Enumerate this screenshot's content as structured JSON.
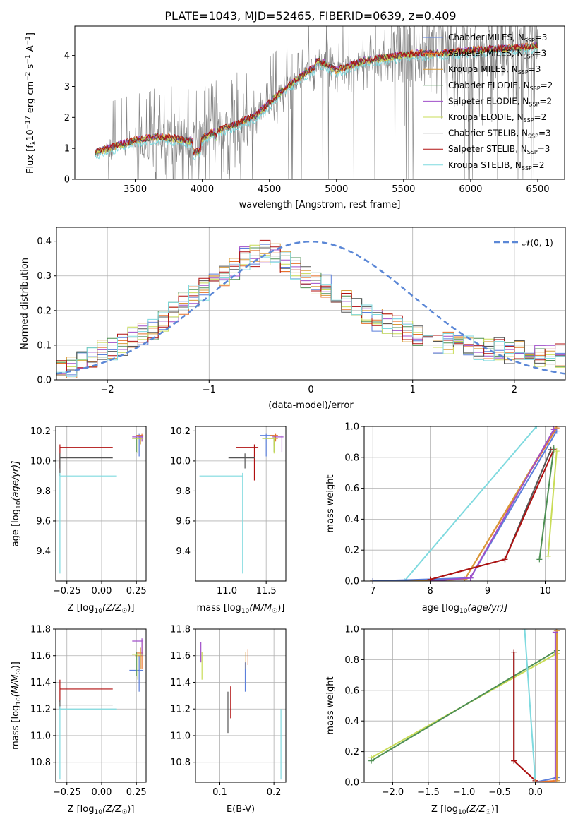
{
  "title": "PLATE=1043, MJD=52465, FIBERID=0639, z=0.409",
  "colors": {
    "chabrier_miles": "#5b7fdb",
    "salpeter_miles": "#e8722a",
    "kroupa_miles": "#d99a3a",
    "chabrier_elodie": "#4e8f54",
    "salpeter_elodie": "#a04fc9",
    "kroupa_elodie": "#c9dc57",
    "chabrier_stelib": "#555555",
    "salpeter_stelib": "#b01010",
    "kroupa_stelib": "#7fdadf",
    "data": "#808080",
    "normal": "#5b87d6"
  },
  "chart_data": [
    {
      "id": "spectrum",
      "type": "line",
      "xlabel": "wavelength [Angstrom, rest frame]",
      "ylabel_main": "Flux [f",
      "ylabel_sub": "λ",
      "ylabel_rest": "10",
      "ylabel_sup1": "−17",
      "ylabel_mid": " erg cm",
      "ylabel_sup2": "−2",
      "ylabel_mid2": " s",
      "ylabel_sup3": "−1",
      "ylabel_mid3": " A",
      "ylabel_sup4": "−1",
      "ylabel_end": "]",
      "xlim": [
        3050,
        6700
      ],
      "ylim": [
        0,
        4.95
      ],
      "xticks": [
        "3500",
        "4000",
        "4500",
        "5000",
        "5500",
        "6000",
        "6500"
      ],
      "yticks": [
        "0",
        "1",
        "2",
        "3",
        "4"
      ],
      "continuum": [
        [
          3200,
          0.85
        ],
        [
          3350,
          1.05
        ],
        [
          3500,
          1.25
        ],
        [
          3650,
          1.35
        ],
        [
          3800,
          1.3
        ],
        [
          3950,
          1.2
        ],
        [
          4100,
          1.55
        ],
        [
          4250,
          1.75
        ],
        [
          4400,
          2.05
        ],
        [
          4500,
          2.45
        ],
        [
          4600,
          2.85
        ],
        [
          4700,
          3.2
        ],
        [
          4800,
          3.5
        ],
        [
          4900,
          3.75
        ],
        [
          5000,
          3.5
        ],
        [
          5200,
          3.8
        ],
        [
          5400,
          3.95
        ],
        [
          5600,
          4.05
        ],
        [
          5800,
          4.05
        ],
        [
          6000,
          4.15
        ],
        [
          6200,
          4.2
        ],
        [
          6400,
          4.25
        ],
        [
          6500,
          4.3
        ]
      ],
      "legend": [
        {
          "label": "Chabrier MILES, N",
          "sub": "SSP",
          "tail": "=3",
          "color_key": "chabrier_miles"
        },
        {
          "label": "Salpeter MILES, N",
          "sub": "SSP",
          "tail": "=3",
          "color_key": "salpeter_miles"
        },
        {
          "label": "Kroupa MILES, N",
          "sub": "SSP",
          "tail": "=3",
          "color_key": "kroupa_miles"
        },
        {
          "label": "Chabrier ELODIE, N",
          "sub": "SSP",
          "tail": "=2",
          "color_key": "chabrier_elodie"
        },
        {
          "label": "Salpeter ELODIE, N",
          "sub": "SSP",
          "tail": "=2",
          "color_key": "salpeter_elodie"
        },
        {
          "label": "Kroupa ELODIE, N",
          "sub": "SSP",
          "tail": "=2",
          "color_key": "kroupa_elodie"
        },
        {
          "label": "Chabrier STELIB, N",
          "sub": "SSP",
          "tail": "=3",
          "color_key": "chabrier_stelib"
        },
        {
          "label": "Salpeter STELIB, N",
          "sub": "SSP",
          "tail": "=3",
          "color_key": "salpeter_stelib"
        },
        {
          "label": "Kroupa STELIB, N",
          "sub": "SSP",
          "tail": "=2",
          "color_key": "kroupa_stelib"
        }
      ]
    },
    {
      "id": "residuals",
      "type": "histogram",
      "xlabel": "(data-model)/error",
      "ylabel": "Normed distribution",
      "xlim": [
        -2.5,
        2.5
      ],
      "ylim": [
        0,
        0.44
      ],
      "xticks": [
        "−2",
        "−1",
        "0",
        "1",
        "2"
      ],
      "yticks": [
        "0.0",
        "0.1",
        "0.2",
        "0.3",
        "0.4"
      ],
      "bin_width": 0.1,
      "legend_label": "𝒩(0, 1)",
      "series_profile": [
        0.03,
        0.04,
        0.05,
        0.07,
        0.08,
        0.09,
        0.1,
        0.12,
        0.13,
        0.15,
        0.17,
        0.2,
        0.22,
        0.24,
        0.26,
        0.28,
        0.3,
        0.32,
        0.35,
        0.36,
        0.37,
        0.36,
        0.34,
        0.32,
        0.3,
        0.28,
        0.27,
        0.25,
        0.23,
        0.21,
        0.19,
        0.17,
        0.16,
        0.15,
        0.14,
        0.13,
        0.12,
        0.11,
        0.11,
        0.1,
        0.1,
        0.09,
        0.09,
        0.09,
        0.08,
        0.08,
        0.08,
        0.07,
        0.07,
        0.07
      ]
    },
    {
      "id": "age_vs_Z",
      "type": "errorbar",
      "xlabel": "Z [log",
      "xlabel_sub": "10",
      "xlabel_rest": "(Z/Z",
      "xlabel_sun": "☉",
      "xlabel_end": ")]",
      "ylabel": "age  [log",
      "ylabel_sub": "10",
      "ylabel_rest": "(age/yr)]",
      "xlim": [
        -0.33,
        0.32
      ],
      "ylim": [
        9.2,
        10.23
      ],
      "xticks": [
        "−0.25",
        "0.00",
        "0.25"
      ],
      "yticks": [
        "9.4",
        "9.6",
        "9.8",
        "10.0",
        "10.2"
      ],
      "points": [
        {
          "c": "salpeter_stelib",
          "x": -0.3,
          "y": 10.09,
          "xe": [
            -0.3,
            0.08
          ],
          "ye": [
            9.95,
            10.11
          ]
        },
        {
          "c": "chabrier_stelib",
          "x": -0.3,
          "y": 10.02,
          "xe": [
            -0.3,
            0.08
          ],
          "ye": [
            9.9,
            10.05
          ]
        },
        {
          "c": "kroupa_stelib",
          "x": -0.3,
          "y": 9.9,
          "xe": [
            -0.3,
            0.11
          ],
          "ye": [
            9.25,
            9.92
          ]
        },
        {
          "c": "chabrier_miles",
          "x": 0.27,
          "y": 10.17,
          "xe": [
            0.25,
            0.3
          ],
          "ye": [
            10.03,
            10.18
          ]
        },
        {
          "c": "salpeter_miles",
          "x": 0.29,
          "y": 10.17,
          "xe": [
            0.25,
            0.3
          ],
          "ye": [
            10.13,
            10.18
          ]
        },
        {
          "c": "kroupa_miles",
          "x": 0.28,
          "y": 10.15,
          "xe": [
            0.24,
            0.3
          ],
          "ye": [
            10.11,
            10.17
          ]
        },
        {
          "c": "chabrier_elodie",
          "x": 0.25,
          "y": 10.15,
          "xe": [
            0.22,
            0.3
          ],
          "ye": [
            10.06,
            10.16
          ]
        },
        {
          "c": "salpeter_elodie",
          "x": 0.29,
          "y": 10.16,
          "xe": [
            0.22,
            0.3
          ],
          "ye": [
            10.13,
            10.17
          ]
        },
        {
          "c": "kroupa_elodie",
          "x": 0.26,
          "y": 10.15,
          "xe": [
            0.22,
            0.3
          ],
          "ye": [
            10.05,
            10.16
          ]
        }
      ]
    },
    {
      "id": "age_vs_mass",
      "type": "errorbar",
      "xlabel": "mass [log",
      "xlabel_sub": "10",
      "xlabel_rest": "(M/M",
      "xlabel_sun": "☉",
      "xlabel_end": ")]",
      "xlim": [
        10.6,
        11.75
      ],
      "ylim": [
        9.2,
        10.23
      ],
      "xticks": [
        "11.0",
        "11.5"
      ],
      "yticks": [
        "9.4",
        "9.6",
        "9.8",
        "10.0",
        "10.2"
      ],
      "points": [
        {
          "c": "salpeter_stelib",
          "x": 11.35,
          "y": 10.09,
          "xe": [
            11.12,
            11.4
          ],
          "ye": [
            9.87,
            10.11
          ]
        },
        {
          "c": "chabrier_stelib",
          "x": 11.23,
          "y": 10.02,
          "xe": [
            11.02,
            11.36
          ],
          "ye": [
            9.95,
            10.05
          ]
        },
        {
          "c": "kroupa_stelib",
          "x": 11.2,
          "y": 9.9,
          "xe": [
            10.65,
            11.2
          ],
          "ye": [
            9.25,
            9.92
          ]
        },
        {
          "c": "chabrier_miles",
          "x": 11.5,
          "y": 10.17,
          "xe": [
            11.42,
            11.6
          ],
          "ye": [
            10.03,
            10.18
          ]
        },
        {
          "c": "salpeter_miles",
          "x": 11.62,
          "y": 10.17,
          "xe": [
            11.55,
            11.65
          ],
          "ye": [
            10.13,
            10.18
          ]
        },
        {
          "c": "kroupa_miles",
          "x": 11.6,
          "y": 10.15,
          "xe": [
            11.5,
            11.65
          ],
          "ye": [
            10.1,
            10.17
          ]
        },
        {
          "c": "chabrier_elodie",
          "x": 11.6,
          "y": 10.15,
          "xe": [
            11.45,
            11.62
          ],
          "ye": [
            10.06,
            10.16
          ]
        },
        {
          "c": "salpeter_elodie",
          "x": 11.7,
          "y": 10.16,
          "xe": [
            11.58,
            11.72
          ],
          "ye": [
            10.06,
            10.17
          ]
        },
        {
          "c": "kroupa_elodie",
          "x": 11.6,
          "y": 10.15,
          "xe": [
            11.45,
            11.62
          ],
          "ye": [
            10.05,
            10.16
          ]
        }
      ]
    },
    {
      "id": "weight_vs_age",
      "type": "line",
      "xlabel": "age  [log",
      "xlabel_sub": "10",
      "xlabel_rest": "(age/yr)]",
      "ylabel": "mass weight",
      "xlim": [
        6.85,
        10.35
      ],
      "ylim": [
        0,
        1
      ],
      "xticks": [
        "7",
        "8",
        "9",
        "10"
      ],
      "yticks": [
        "0.0",
        "0.2",
        "0.4",
        "0.6",
        "0.8",
        "1.0"
      ],
      "series": [
        {
          "c": "kroupa_stelib",
          "x": [
            7.55,
            9.85
          ],
          "y": [
            0.0,
            1.0
          ]
        },
        {
          "c": "salpeter_miles",
          "x": [
            7.0,
            8.6,
            10.2
          ],
          "y": [
            0.0,
            0.01,
            0.99
          ]
        },
        {
          "c": "kroupa_miles",
          "x": [
            7.0,
            8.6,
            10.18
          ],
          "y": [
            0.0,
            0.01,
            0.99
          ]
        },
        {
          "c": "chabrier_miles",
          "x": [
            7.0,
            8.7,
            10.2
          ],
          "y": [
            0.0,
            0.02,
            0.97
          ]
        },
        {
          "c": "salpeter_elodie",
          "x": [
            8.0,
            8.7,
            10.15
          ],
          "y": [
            0.0,
            0.02,
            0.98
          ]
        },
        {
          "c": "chabrier_stelib",
          "x": [
            8.0,
            9.3,
            10.1
          ],
          "y": [
            0.01,
            0.14,
            0.85
          ]
        },
        {
          "c": "salpeter_stelib",
          "x": [
            8.0,
            9.3,
            10.15
          ],
          "y": [
            0.01,
            0.14,
            0.85
          ]
        },
        {
          "c": "chabrier_elodie",
          "x": [
            9.9,
            10.15
          ],
          "y": [
            0.14,
            0.86
          ]
        },
        {
          "c": "kroupa_elodie",
          "x": [
            10.05,
            10.2
          ],
          "y": [
            0.16,
            0.84
          ]
        }
      ]
    },
    {
      "id": "mass_vs_Z",
      "type": "errorbar",
      "xlabel": "Z [log",
      "xlabel_sub": "10",
      "xlabel_rest": "(Z/Z",
      "xlabel_sun": "☉",
      "xlabel_end": ")]",
      "ylabel": "mass [log",
      "ylabel_sub": "10",
      "ylabel_rest": "(M/M",
      "ylabel_sun": "☉",
      "ylabel_end": ")]",
      "xlim": [
        -0.33,
        0.32
      ],
      "ylim": [
        10.65,
        11.8
      ],
      "xticks": [
        "−0.25",
        "0.00",
        "0.25"
      ],
      "yticks": [
        "10.8",
        "11.0",
        "11.2",
        "11.4",
        "11.6",
        "11.8"
      ],
      "points": [
        {
          "c": "salpeter_stelib",
          "x": -0.3,
          "y": 11.35,
          "xe": [
            -0.3,
            0.08
          ],
          "ye": [
            11.25,
            11.42
          ]
        },
        {
          "c": "chabrier_stelib",
          "x": -0.3,
          "y": 11.23,
          "xe": [
            -0.3,
            0.08
          ],
          "ye": [
            11.2,
            11.27
          ]
        },
        {
          "c": "kroupa_stelib",
          "x": -0.3,
          "y": 11.2,
          "xe": [
            -0.3,
            0.11
          ],
          "ye": [
            10.67,
            11.22
          ]
        },
        {
          "c": "chabrier_miles",
          "x": 0.27,
          "y": 11.49,
          "xe": [
            0.2,
            0.3
          ],
          "ye": [
            11.33,
            11.6
          ]
        },
        {
          "c": "salpeter_miles",
          "x": 0.29,
          "y": 11.62,
          "xe": [
            0.25,
            0.3
          ],
          "ye": [
            11.5,
            11.7
          ]
        },
        {
          "c": "kroupa_miles",
          "x": 0.28,
          "y": 11.6,
          "xe": [
            0.24,
            0.3
          ],
          "ye": [
            11.5,
            11.66
          ]
        },
        {
          "c": "chabrier_elodie",
          "x": 0.25,
          "y": 11.61,
          "xe": [
            0.22,
            0.3
          ],
          "ye": [
            11.45,
            11.63
          ]
        },
        {
          "c": "salpeter_elodie",
          "x": 0.29,
          "y": 11.71,
          "xe": [
            0.22,
            0.3
          ],
          "ye": [
            11.6,
            11.73
          ]
        },
        {
          "c": "kroupa_elodie",
          "x": 0.26,
          "y": 11.61,
          "xe": [
            0.22,
            0.3
          ],
          "ye": [
            11.42,
            11.62
          ]
        }
      ]
    },
    {
      "id": "mass_vs_ebv",
      "type": "errorbar",
      "xlabel": "E(B-V)",
      "xlim": [
        0.055,
        0.222
      ],
      "ylim": [
        10.65,
        11.8
      ],
      "xticks": [
        "0.1",
        "0.2"
      ],
      "yticks": [
        "10.8",
        "11.0",
        "11.2",
        "11.4",
        "11.6",
        "11.8"
      ],
      "points": [
        {
          "c": "salpeter_elodie",
          "x": 0.065,
          "y": 11.6,
          "ye": [
            11.55,
            11.7
          ]
        },
        {
          "c": "kroupa_elodie",
          "x": 0.067,
          "y": 11.55,
          "ye": [
            11.42,
            11.63
          ]
        },
        {
          "c": "chabrier_stelib",
          "x": 0.115,
          "y": 11.2,
          "ye": [
            11.02,
            11.33
          ]
        },
        {
          "c": "salpeter_stelib",
          "x": 0.12,
          "y": 11.25,
          "ye": [
            11.13,
            11.37
          ]
        },
        {
          "c": "chabrier_miles",
          "x": 0.147,
          "y": 11.42,
          "ye": [
            11.33,
            11.55
          ]
        },
        {
          "c": "kroupa_miles",
          "x": 0.148,
          "y": 11.55,
          "ye": [
            11.5,
            11.63
          ]
        },
        {
          "c": "salpeter_miles",
          "x": 0.152,
          "y": 11.6,
          "ye": [
            11.53,
            11.65
          ]
        },
        {
          "c": "kroupa_stelib",
          "x": 0.213,
          "y": 11.0,
          "ye": [
            10.67,
            11.2
          ]
        }
      ]
    },
    {
      "id": "weight_vs_Z",
      "type": "line",
      "xlabel": "Z [log",
      "xlabel_sub": "10",
      "xlabel_rest": "(Z/Z",
      "xlabel_sun": "☉",
      "xlabel_end": ")]",
      "ylabel": "mass weight",
      "xlim": [
        -2.4,
        0.42
      ],
      "ylim": [
        0,
        1
      ],
      "xticks": [
        "−2.0",
        "−1.5",
        "−1.0",
        "−0.5",
        "0.0"
      ],
      "yticks": [
        "0.0",
        "0.2",
        "0.4",
        "0.6",
        "0.8",
        "1.0"
      ],
      "series": [
        {
          "c": "kroupa_elodie",
          "x": [
            -2.3,
            0.3
          ],
          "y": [
            0.16,
            0.84
          ]
        },
        {
          "c": "chabrier_elodie",
          "x": [
            -2.3,
            0.3
          ],
          "y": [
            0.14,
            0.86
          ]
        },
        {
          "c": "chabrier_stelib",
          "x": [
            -0.3,
            -0.3,
            0.0
          ],
          "y": [
            0.85,
            0.14,
            0.01
          ]
        },
        {
          "c": "salpeter_stelib",
          "x": [
            -0.3,
            -0.3,
            0.0
          ],
          "y": [
            0.85,
            0.14,
            0.01
          ]
        },
        {
          "c": "kroupa_stelib",
          "x": [
            -0.15,
            0.0
          ],
          "y": [
            1.0,
            0.0
          ]
        },
        {
          "c": "chabrier_miles",
          "x": [
            0.0,
            0.3
          ],
          "y": [
            0.0,
            0.03
          ]
        },
        {
          "c": "salpeter_miles",
          "x": [
            0.0,
            0.3,
            0.3
          ],
          "y": [
            0.0,
            0.01,
            0.99
          ]
        },
        {
          "c": "kroupa_miles",
          "x": [
            0.3,
            0.3
          ],
          "y": [
            0.01,
            0.99
          ]
        },
        {
          "c": "salpeter_elodie",
          "x": [
            0.28,
            0.28
          ],
          "y": [
            0.02,
            0.98
          ]
        }
      ]
    }
  ]
}
